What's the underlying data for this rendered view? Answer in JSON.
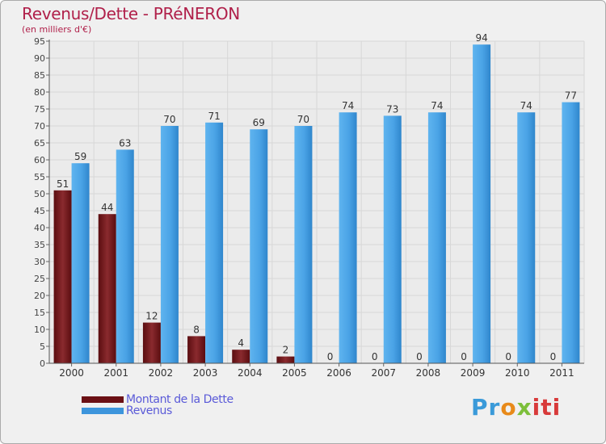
{
  "header": {
    "title": "Revenus/Dette - PRéNERON",
    "subtitle": "(en milliers d'€)"
  },
  "chart_data": {
    "type": "bar",
    "title": "Revenus/Dette - PRéNERON",
    "subtitle": "(en milliers d'€)",
    "xlabel": "",
    "ylabel": "",
    "ylim": [
      0,
      95
    ],
    "yticks": [
      0,
      5,
      10,
      15,
      20,
      25,
      30,
      35,
      40,
      45,
      50,
      55,
      60,
      65,
      70,
      75,
      80,
      85,
      90,
      95
    ],
    "grid": true,
    "legend_position": "bottom-left",
    "categories": [
      "2000",
      "2001",
      "2002",
      "2003",
      "2004",
      "2005",
      "2006",
      "2007",
      "2008",
      "2009",
      "2010",
      "2011"
    ],
    "series": [
      {
        "name": "Montant de la Dette",
        "color": "#7a1f24",
        "values": [
          51,
          44,
          12,
          8,
          4,
          2,
          0,
          0,
          0,
          0,
          0,
          0
        ]
      },
      {
        "name": "Revenus",
        "color": "#4aa3e6",
        "values": [
          59,
          63,
          70,
          71,
          69,
          70,
          74,
          73,
          74,
          94,
          74,
          77
        ]
      }
    ]
  },
  "legend": {
    "debt_label": "Montant de la Dette",
    "revenue_label": "Revenus",
    "debt_color": "#6b1014",
    "revenue_color": "#3d95dc"
  },
  "logo": {
    "text": "Proxiti",
    "part1": "Pr",
    "part2": "o",
    "part3": "x",
    "part4": "iti"
  }
}
